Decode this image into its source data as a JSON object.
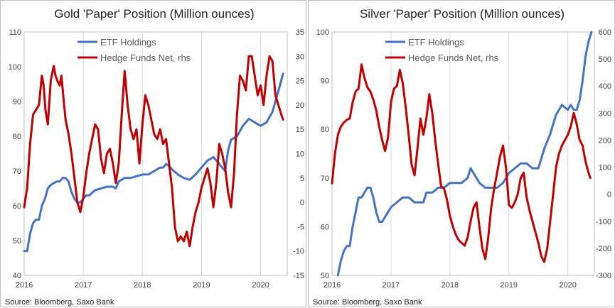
{
  "chart_data": [
    {
      "type": "line",
      "title": "Gold 'Paper' Position (Million ounces)",
      "source": "Source: Bloomberg, Saxo Bank",
      "x_range": [
        2016.0,
        2020.45
      ],
      "x_ticks": [
        "2016",
        "2017",
        "2018",
        "2019",
        "2020"
      ],
      "y_left": {
        "min": 40,
        "max": 110,
        "ticks": [
          "40",
          "50",
          "60",
          "70",
          "80",
          "90",
          "100",
          "110"
        ]
      },
      "y_right": {
        "min": -15,
        "max": 35,
        "ticks": [
          "-15",
          "-10",
          "-5",
          "0",
          "5",
          "10",
          "15",
          "20",
          "25",
          "30",
          "35"
        ]
      },
      "legend_position": "top-center",
      "series": [
        {
          "name": "ETF Holdings",
          "axis": "left",
          "color": "#4472c4",
          "x": [
            2016.0,
            2016.05,
            2016.1,
            2016.15,
            2016.2,
            2016.25,
            2016.3,
            2016.35,
            2016.4,
            2016.45,
            2016.5,
            2016.55,
            2016.6,
            2016.65,
            2016.7,
            2016.75,
            2016.8,
            2016.85,
            2016.9,
            2016.95,
            2017.0,
            2017.05,
            2017.1,
            2017.2,
            2017.3,
            2017.4,
            2017.5,
            2017.55,
            2017.6,
            2017.7,
            2017.8,
            2017.9,
            2018.0,
            2018.1,
            2018.2,
            2018.3,
            2018.35,
            2018.4,
            2018.45,
            2018.5,
            2018.6,
            2018.7,
            2018.8,
            2018.9,
            2019.0,
            2019.1,
            2019.2,
            2019.3,
            2019.4,
            2019.45,
            2019.5,
            2019.6,
            2019.7,
            2019.8,
            2019.9,
            2020.0,
            2020.1,
            2020.2,
            2020.3,
            2020.38
          ],
          "values": [
            47,
            47,
            52,
            55,
            56,
            56,
            60,
            62,
            65,
            66,
            66.5,
            67,
            67,
            68,
            68,
            67,
            64,
            62,
            61,
            61,
            62,
            63,
            63,
            64.5,
            65,
            65.5,
            65.5,
            65,
            67,
            68,
            68,
            68.5,
            69,
            69,
            70,
            71,
            71,
            72,
            71.5,
            70.5,
            69,
            68,
            67.5,
            69,
            71,
            73,
            74,
            72,
            70,
            76,
            79,
            80,
            83,
            85,
            84,
            83,
            84,
            87,
            93,
            98
          ]
        },
        {
          "name": "Hedge Funds Net, rhs",
          "axis": "right",
          "color": "#c00000",
          "x": [
            2016.0,
            2016.05,
            2016.1,
            2016.15,
            2016.2,
            2016.25,
            2016.3,
            2016.33,
            2016.36,
            2016.4,
            2016.45,
            2016.5,
            2016.53,
            2016.56,
            2016.6,
            2016.63,
            2016.66,
            2016.7,
            2016.75,
            2016.8,
            2016.85,
            2016.9,
            2016.95,
            2017.0,
            2017.05,
            2017.1,
            2017.15,
            2017.2,
            2017.25,
            2017.3,
            2017.35,
            2017.4,
            2017.45,
            2017.5,
            2017.55,
            2017.6,
            2017.65,
            2017.7,
            2017.75,
            2017.8,
            2017.85,
            2017.9,
            2017.95,
            2018.0,
            2018.05,
            2018.1,
            2018.15,
            2018.2,
            2018.25,
            2018.3,
            2018.35,
            2018.4,
            2018.45,
            2018.5,
            2018.55,
            2018.6,
            2018.65,
            2018.7,
            2018.75,
            2018.8,
            2018.85,
            2018.9,
            2018.95,
            2019.0,
            2019.05,
            2019.1,
            2019.15,
            2019.2,
            2019.25,
            2019.3,
            2019.35,
            2019.4,
            2019.45,
            2019.5,
            2019.55,
            2019.6,
            2019.65,
            2019.7,
            2019.75,
            2019.8,
            2019.85,
            2019.9,
            2019.95,
            2020.0,
            2020.05,
            2020.1,
            2020.15,
            2020.2,
            2020.25,
            2020.3,
            2020.35,
            2020.38
          ],
          "values": [
            -1,
            3,
            12,
            18,
            19,
            20,
            26,
            24,
            19,
            16,
            25,
            28,
            26,
            25,
            24,
            26,
            22,
            17,
            14,
            10,
            5,
            0,
            -2,
            1,
            6,
            10,
            13,
            16,
            15,
            9,
            6,
            10,
            11,
            8,
            4,
            8,
            18,
            27,
            20,
            15,
            13,
            15,
            8,
            16,
            22,
            20,
            17,
            14,
            13,
            15,
            12,
            13,
            8,
            3,
            -5,
            -8,
            -7,
            -8,
            -6,
            -9,
            -5,
            -2,
            0,
            3,
            5,
            7,
            4,
            -1,
            4,
            12,
            10,
            7,
            2,
            -1,
            6,
            18,
            26,
            25,
            23,
            30,
            30,
            26,
            22,
            24,
            20,
            26,
            30,
            29,
            22,
            20,
            18,
            17
          ]
        }
      ]
    },
    {
      "type": "line",
      "title": "Silver 'Paper' Position (Million ounces)",
      "source": "Source: Bloomberg, Saxo Bank",
      "x_range": [
        2016.0,
        2020.45
      ],
      "x_ticks": [
        "2016",
        "2017",
        "2018",
        "2019",
        "2020"
      ],
      "y_left": {
        "min": 50,
        "max": 100,
        "ticks": [
          "50",
          "60",
          "70",
          "80",
          "90",
          "100"
        ]
      },
      "y_right": {
        "min": -300,
        "max": 600,
        "ticks": [
          "-300",
          "-200",
          "-100",
          "0",
          "100",
          "200",
          "300",
          "400",
          "500",
          "600"
        ]
      },
      "legend_position": "top-center",
      "series": [
        {
          "name": "ETF Holdings",
          "axis": "left",
          "color": "#4472c4",
          "x": [
            2016.1,
            2016.15,
            2016.2,
            2016.25,
            2016.3,
            2016.35,
            2016.4,
            2016.45,
            2016.5,
            2016.55,
            2016.6,
            2016.65,
            2016.7,
            2016.75,
            2016.8,
            2016.85,
            2016.9,
            2016.95,
            2017.0,
            2017.1,
            2017.2,
            2017.3,
            2017.4,
            2017.5,
            2017.55,
            2017.6,
            2017.7,
            2017.8,
            2017.9,
            2018.0,
            2018.1,
            2018.2,
            2018.3,
            2018.35,
            2018.4,
            2018.5,
            2018.6,
            2018.7,
            2018.8,
            2018.9,
            2019.0,
            2019.1,
            2019.2,
            2019.3,
            2019.4,
            2019.5,
            2019.6,
            2019.7,
            2019.8,
            2019.9,
            2020.0,
            2020.05,
            2020.1,
            2020.15,
            2020.2,
            2020.25,
            2020.3,
            2020.35,
            2020.4
          ],
          "values": [
            50,
            53,
            55,
            56,
            56,
            60,
            63,
            66,
            66,
            67,
            68,
            68,
            66,
            63,
            61,
            61,
            62,
            63,
            64,
            65,
            66,
            66,
            65,
            65,
            65,
            67,
            67,
            68,
            68,
            69,
            69,
            69,
            70,
            72,
            71,
            69,
            68,
            68,
            68,
            69,
            71,
            72,
            73,
            73,
            72,
            72,
            76,
            79,
            83,
            85,
            84,
            85,
            84,
            84,
            86,
            90,
            95,
            98,
            100
          ]
        },
        {
          "name": "Hedge Funds Net, rhs",
          "axis": "right",
          "color": "#c00000",
          "x": [
            2016.0,
            2016.05,
            2016.1,
            2016.15,
            2016.2,
            2016.25,
            2016.3,
            2016.35,
            2016.4,
            2016.45,
            2016.5,
            2016.55,
            2016.6,
            2016.65,
            2016.7,
            2016.75,
            2016.8,
            2016.85,
            2016.9,
            2016.95,
            2017.0,
            2017.05,
            2017.1,
            2017.15,
            2017.2,
            2017.25,
            2017.3,
            2017.35,
            2017.4,
            2017.45,
            2017.5,
            2017.55,
            2017.6,
            2017.65,
            2017.7,
            2017.75,
            2017.8,
            2017.85,
            2017.9,
            2017.95,
            2018.0,
            2018.05,
            2018.1,
            2018.15,
            2018.2,
            2018.25,
            2018.3,
            2018.35,
            2018.4,
            2018.45,
            2018.5,
            2018.55,
            2018.6,
            2018.65,
            2018.7,
            2018.75,
            2018.8,
            2018.85,
            2018.9,
            2018.95,
            2019.0,
            2019.05,
            2019.1,
            2019.15,
            2019.2,
            2019.25,
            2019.3,
            2019.35,
            2019.4,
            2019.45,
            2019.5,
            2019.55,
            2019.6,
            2019.65,
            2019.7,
            2019.75,
            2019.8,
            2019.85,
            2019.9,
            2019.95,
            2020.0,
            2020.05,
            2020.1,
            2020.15,
            2020.2,
            2020.25,
            2020.3,
            2020.35,
            2020.38
          ],
          "values": [
            40,
            150,
            220,
            250,
            265,
            275,
            280,
            340,
            380,
            390,
            480,
            430,
            395,
            380,
            350,
            310,
            250,
            200,
            160,
            210,
            340,
            390,
            400,
            460,
            410,
            320,
            220,
            110,
            70,
            170,
            280,
            220,
            280,
            370,
            300,
            200,
            110,
            30,
            20,
            -20,
            -80,
            -120,
            -150,
            -170,
            -180,
            -190,
            -160,
            -100,
            -50,
            -30,
            -120,
            -200,
            -240,
            -160,
            -50,
            20,
            80,
            140,
            180,
            100,
            -40,
            -50,
            -30,
            0,
            60,
            80,
            -10,
            -60,
            -100,
            -140,
            -180,
            -230,
            -250,
            -200,
            -100,
            0,
            100,
            150,
            180,
            200,
            220,
            250,
            300,
            260,
            200,
            180,
            120,
            80,
            60
          ]
        }
      ]
    }
  ]
}
